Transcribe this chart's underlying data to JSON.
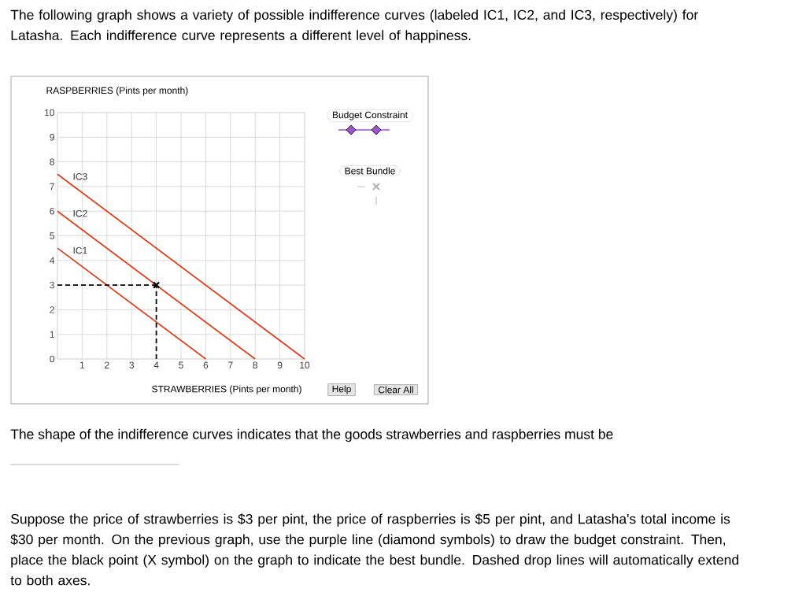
{
  "chart_data": {
    "type": "line",
    "title": "The following graph shows a variety of possible indifference curves (labeled IC1, IC2, and IC3, respectively) for Latasha. Each indifference curve represents a different level of happiness.",
    "xlabel": "STRAWBERRIES (Pints per month)",
    "ylabel": "RASPBERRIES (Pints per month)",
    "xlim": [
      0,
      10
    ],
    "ylim": [
      0,
      10
    ],
    "xticks": [
      {
        "value": 0,
        "label": null
      },
      1,
      2,
      3,
      4,
      5,
      6,
      7,
      8,
      9,
      10
    ],
    "yticks": [
      0,
      1,
      2,
      3,
      4,
      5,
      6,
      7,
      8,
      9,
      10
    ],
    "grid": true,
    "series": [
      {
        "name": "IC1",
        "color": "#d9411e",
        "x": [
          0,
          6
        ],
        "values": [
          4.5,
          0
        ]
      },
      {
        "name": "IC2",
        "color": "#d9411e",
        "x": [
          0,
          8
        ],
        "values": [
          6,
          0
        ]
      },
      {
        "name": "IC3",
        "color": "#d9411e",
        "x": [
          0,
          10
        ],
        "values": [
          7.5,
          0
        ]
      },
      {
        "type": "line",
        "line_style": "dashed",
        "color": "#000000",
        "x": [
          0,
          4
        ],
        "values": [
          3,
          3
        ]
      },
      {
        "type": "line",
        "line_style": "dashed",
        "color": "#000000",
        "x": [
          4,
          4
        ],
        "values": [
          0,
          3
        ]
      },
      {
        "type": "scatter",
        "marker": "cross",
        "color": "#000000",
        "x": [
          4
        ],
        "values": [
          3
        ]
      }
    ],
    "annotations": [
      "Budget Constraint",
      "Best Bundle",
      "Help",
      "Clear All",
      "The shape of the indifference curves indicates that the goods strawberries and raspberries must be",
      "Suppose the price of strawberries is $3 per pint, the price of raspberries is $5 per pint, and Latasha's total income is $30 per month. On the previous graph, use the purple line (diamond symbols) to draw the budget constraint. Then, place the black point (X symbol) on the graph to indicate the best bundle. Dashed drop lines will automatically extend to both axes."
    ]
  }
}
